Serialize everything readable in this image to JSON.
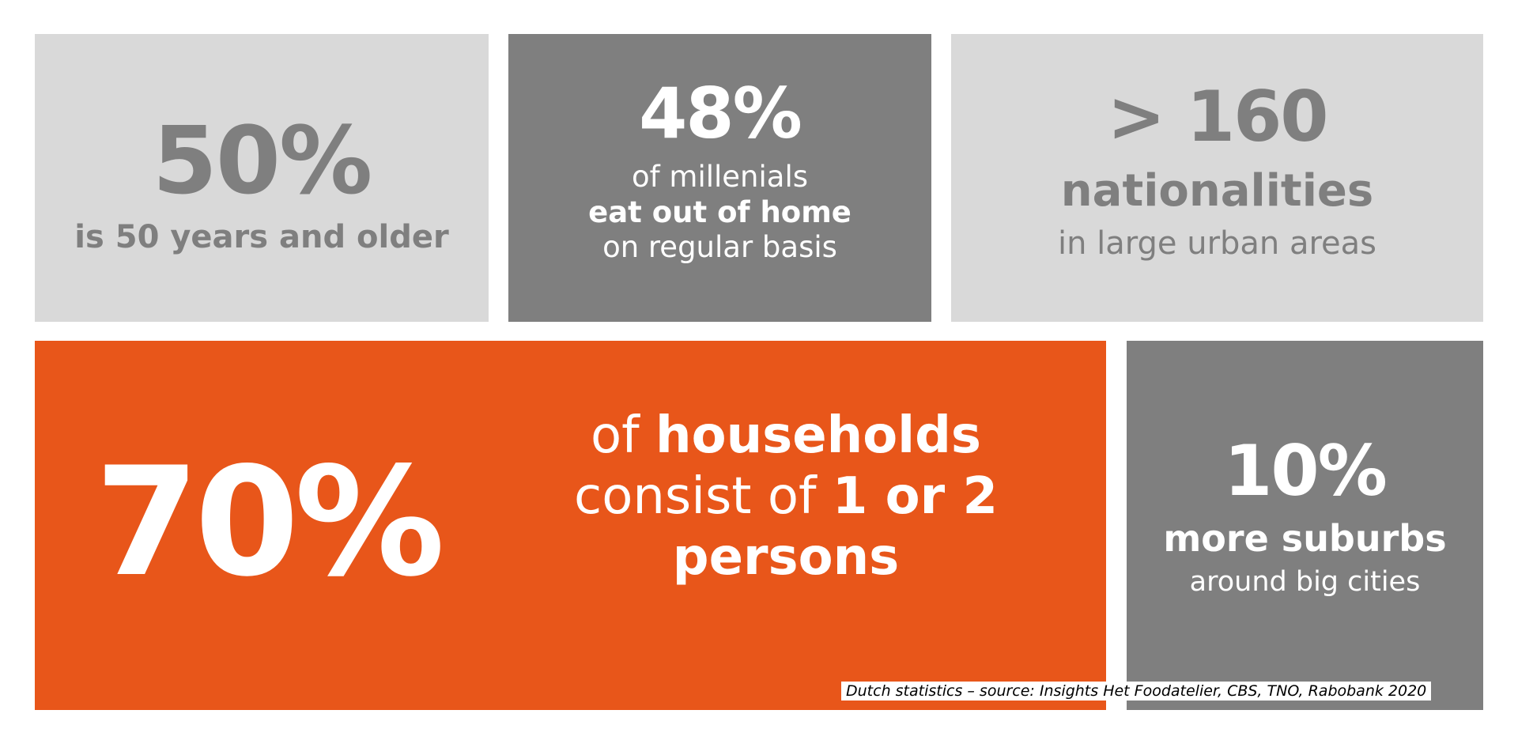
{
  "tiles": {
    "seniors": {
      "stat": "50%",
      "caption": "is 50 years and older"
    },
    "millenials": {
      "stat": "48%",
      "line1": "of millenials",
      "line2": "eat out of home",
      "line3": "on regular basis"
    },
    "nationalities": {
      "stat": "> 160",
      "line1": "nationalities",
      "line2": "in large urban areas"
    },
    "households": {
      "stat": "70%",
      "row1_light": "of ",
      "row1_bold": "households",
      "row2_light": "consist of ",
      "row2_bold": "1 or 2",
      "row3_bold": "persons"
    },
    "suburbs": {
      "stat": "10%",
      "line1": "more suburbs",
      "line2": "around big cities"
    }
  },
  "source": "Dutch statistics – source: Insights Het Foodatelier, CBS, TNO, Rabobank 2020",
  "colors": {
    "light_tile": "#d9d9d9",
    "dark_tile": "#7f7f7f",
    "accent_orange": "#e8561a",
    "light_text": "#7f7f7f"
  }
}
